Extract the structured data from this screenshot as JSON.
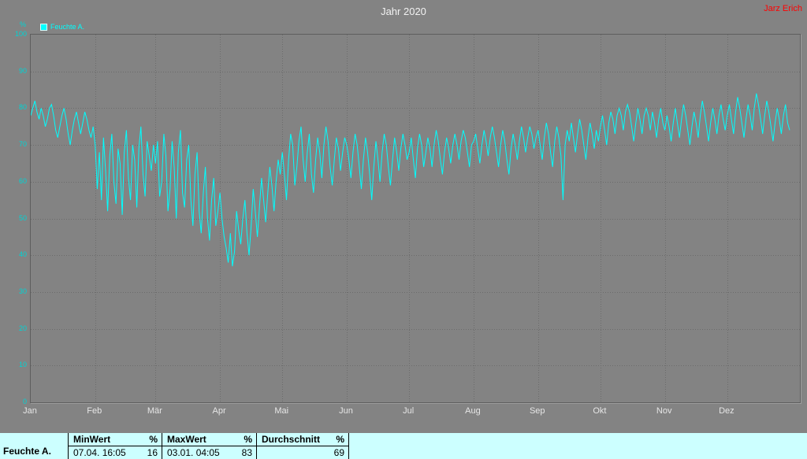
{
  "header": {
    "title": "Jahr 2020",
    "author": "Jarz Erich"
  },
  "legend": {
    "label": "Feuchte A.",
    "color": "#00ffff"
  },
  "y_axis": {
    "unit": "%"
  },
  "chart_data": {
    "type": "line",
    "title": "Jahr 2020",
    "series_name": "Feuchte A.",
    "unit": "%",
    "categories": [
      "Jan",
      "Feb",
      "Mär",
      "Apr",
      "Mai",
      "Jun",
      "Jul",
      "Aug",
      "Sep",
      "Okt",
      "Nov",
      "Dez"
    ],
    "month_days": [
      31,
      29,
      31,
      30,
      31,
      30,
      31,
      31,
      30,
      31,
      30,
      31
    ],
    "ylim": [
      0,
      100
    ],
    "y_ticks": [
      0,
      10,
      20,
      30,
      40,
      50,
      60,
      70,
      80,
      90,
      100
    ],
    "grid": "dotted",
    "line_color": "#00ffff",
    "legend_position": "top-left",
    "values": [
      78,
      80,
      82,
      79,
      77,
      80,
      78,
      75,
      77,
      80,
      81,
      78,
      74,
      72,
      75,
      78,
      80,
      77,
      73,
      70,
      74,
      77,
      79,
      76,
      73,
      76,
      79,
      77,
      74,
      72,
      75,
      70,
      58,
      68,
      55,
      72,
      63,
      52,
      67,
      73,
      60,
      54,
      69,
      65,
      51,
      68,
      74,
      61,
      55,
      70,
      66,
      53,
      69,
      75,
      62,
      56,
      71,
      67,
      63,
      70,
      65,
      71,
      56,
      60,
      73,
      67,
      52,
      58,
      71,
      64,
      50,
      68,
      74,
      57,
      53,
      66,
      70,
      55,
      48,
      62,
      68,
      52,
      46,
      57,
      64,
      50,
      44,
      55,
      61,
      48,
      52,
      57,
      50,
      45,
      42,
      38,
      46,
      37,
      41,
      52,
      47,
      43,
      50,
      55,
      46,
      40,
      48,
      58,
      52,
      45,
      53,
      61,
      55,
      49,
      57,
      64,
      59,
      52,
      60,
      66,
      62,
      68,
      62,
      55,
      66,
      73,
      70,
      59,
      64,
      71,
      75,
      66,
      60,
      68,
      73,
      62,
      57,
      66,
      72,
      68,
      61,
      70,
      75,
      71,
      64,
      59,
      66,
      72,
      69,
      63,
      68,
      72,
      70,
      66,
      61,
      68,
      73,
      70,
      64,
      58,
      66,
      72,
      68,
      62,
      55,
      64,
      71,
      66,
      60,
      68,
      73,
      70,
      64,
      59,
      66,
      72,
      68,
      63,
      69,
      73,
      70,
      66,
      68,
      72,
      66,
      61,
      69,
      73,
      70,
      64,
      68,
      72,
      69,
      64,
      70,
      74,
      71,
      66,
      62,
      68,
      72,
      69,
      65,
      70,
      73,
      70,
      66,
      71,
      74,
      72,
      68,
      64,
      70,
      71,
      73,
      69,
      65,
      70,
      74,
      71,
      67,
      72,
      75,
      72,
      68,
      64,
      70,
      74,
      71,
      66,
      62,
      69,
      73,
      70,
      66,
      71,
      75,
      72,
      68,
      72,
      75,
      73,
      69,
      72,
      74,
      70,
      66,
      72,
      76,
      73,
      68,
      64,
      71,
      75,
      72,
      67,
      55,
      70,
      74,
      71,
      76,
      72,
      68,
      73,
      77,
      74,
      70,
      66,
      72,
      76,
      73,
      69,
      74,
      71,
      75,
      78,
      74,
      70,
      76,
      79,
      77,
      73,
      78,
      80,
      78,
      74,
      79,
      81,
      79,
      75,
      71,
      76,
      80,
      77,
      73,
      78,
      80,
      78,
      74,
      79,
      76,
      72,
      77,
      80,
      76,
      74,
      78,
      75,
      71,
      76,
      80,
      76,
      72,
      77,
      81,
      78,
      74,
      70,
      75,
      79,
      76,
      72,
      78,
      82,
      79,
      75,
      71,
      76,
      80,
      77,
      73,
      78,
      81,
      77,
      74,
      78,
      81,
      77,
      73,
      79,
      83,
      80,
      76,
      72,
      77,
      81,
      78,
      74,
      80,
      84,
      81,
      77,
      73,
      78,
      82,
      79,
      75,
      71,
      76,
      80,
      77,
      73,
      78,
      81,
      76,
      74
    ]
  },
  "status": {
    "series": "Feuchte A.",
    "min": {
      "label": "MinWert",
      "unit": "%",
      "timestamp": "07.04. 16:05",
      "value": "16"
    },
    "max": {
      "label": "MaxWert",
      "unit": "%",
      "timestamp": "03.01. 04:05",
      "value": "83"
    },
    "avg": {
      "label": "Durchschnitt",
      "unit": "%",
      "timestamp": "",
      "value": "69"
    }
  },
  "colors": {
    "background": "#838383",
    "grid": "#6b6b6b",
    "statusbar_bg": "#ccffff",
    "accent": "#00ffff",
    "author_text": "#ff0000",
    "axis_label": "#00d4d4",
    "month_label": "#e6e6e6"
  }
}
